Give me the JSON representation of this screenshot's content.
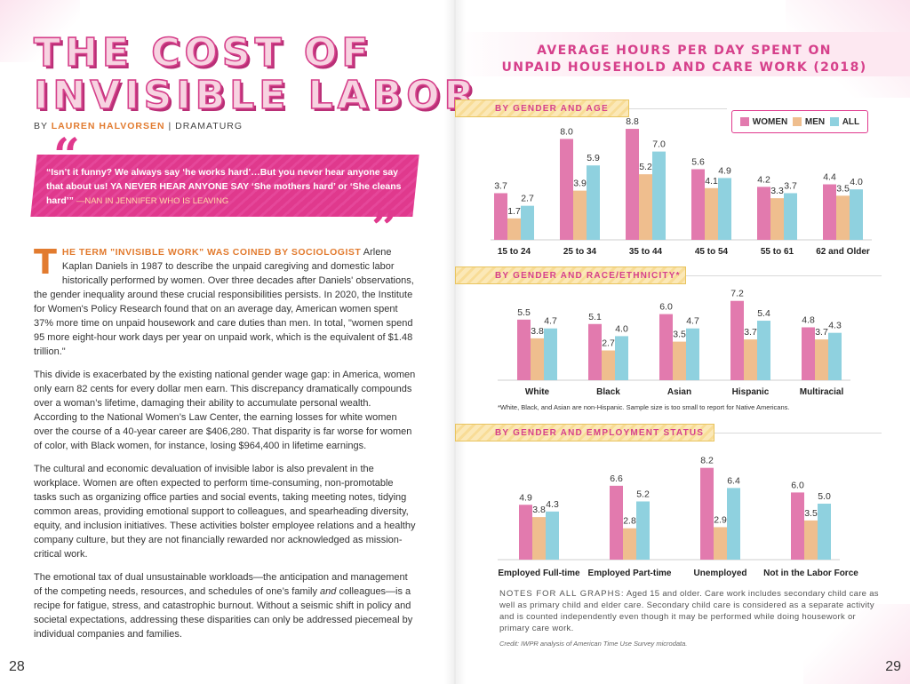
{
  "left": {
    "title_line1": "THE COST OF",
    "title_line2": "INVISIBLE LABOR",
    "byline_by": "BY",
    "byline_author": "LAUREN HALVORSEN",
    "byline_sep": "|",
    "byline_role": "DRAMATURG",
    "quote_mark_open": "“",
    "quote_mark_close": "”",
    "quote_part1": "“Isn’t it funny? We always say ‘he works hard’…But you never hear anyone say that about us! ",
    "quote_part2": "Ya never hear anyone say",
    "quote_part3": " ‘She mothers hard’ or ‘She cleans hard’” ",
    "quote_attr": "—NAN IN JENNIFER WHO IS LEAVING",
    "dropcap": "T",
    "lead": "he term \"invisible work\" was coined by sociologist",
    "para1": " Arlene Kaplan Daniels in 1987 to describe the unpaid caregiving and domestic labor historically performed by women. Over three decades after Daniels' observations, the gender inequality around these crucial responsibilities persists. In 2020, the Institute for Women's Policy Research found that on an average day, American women spent 37% more time on unpaid housework and care duties than men. In total, \"women spend 95 more eight-hour work days per year on unpaid work, which is the equivalent of $1.48 trillion.\"",
    "para2": "This divide is exacerbated by the existing national gender wage gap: in America, women only earn 82 cents for every dollar men earn. This discrepancy dramatically compounds over a woman’s lifetime, damaging their ability to accumulate personal wealth. According to the National Women’s Law Center, the earning losses for white women over the course of a 40-year career are $406,280. That disparity is far worse for women of color, with Black women, for instance, losing $964,400 in lifetime earnings.",
    "para3": "The cultural and economic devaluation of invisible labor is also prevalent in the workplace. Women are often expected to perform time-consuming, non-promotable tasks such as organizing office parties and social events, taking meeting notes, tidying common areas, providing emotional support to colleagues, and spearheading diversity, equity, and inclusion initiatives. These activities bolster employee relations and a healthy company culture, but they are not financially rewarded nor acknowledged as mission-critical work.",
    "para4a": "The emotional tax of dual unsustainable workloads—the anticipation and management of the competing needs, resources, and schedules of one’s family ",
    "para4_em": "and",
    "para4b": " colleagues—is a recipe for fatigue, stress, and catastrophic burnout. Without a seismic shift in policy and societal expectations, addressing these disparities can only be addressed piecemeal by individual companies and families.",
    "page_number": "28"
  },
  "right": {
    "title_line1": "AVERAGE HOURS PER DAY SPENT ON",
    "title_line2": "UNPAID HOUSEHOLD AND CARE WORK (2018)",
    "legend": [
      "WOMEN",
      "MEN",
      "ALL"
    ],
    "footnote": "*White, Black, and Asian are non-Hispanic. Sample size is too small to report for Native Americans.",
    "notes_label": "NOTES FOR ALL GRAPHS:",
    "notes_text": " Aged 15 and older. Care work includes secondary child care as well as primary child and elder care. Secondary child care is considered as a separate activity and is counted independently even though it may be performed while doing housework or primary care work.",
    "credit": "Credit: IWPR analysis of American Time Use Survey microdata.",
    "page_number": "29"
  },
  "colors": {
    "women": "#e27aae",
    "men": "#efbe8e",
    "all": "#8fd1df",
    "accent": "#e0398d",
    "orange": "#e27b2f"
  },
  "chart_data": [
    {
      "type": "bar",
      "title": "BY GENDER AND AGE",
      "categories": [
        "15 to 24",
        "25 to 34",
        "35 to 44",
        "45 to 54",
        "55 to 61",
        "62 and Older"
      ],
      "series": [
        {
          "name": "WOMEN",
          "values": [
            3.7,
            8.0,
            8.8,
            5.6,
            4.2,
            4.4
          ]
        },
        {
          "name": "MEN",
          "values": [
            1.7,
            3.9,
            5.2,
            4.1,
            3.3,
            3.5
          ]
        },
        {
          "name": "ALL",
          "values": [
            2.7,
            5.9,
            7.0,
            4.9,
            3.7,
            4.0
          ]
        }
      ]
    },
    {
      "type": "bar",
      "title": "BY GENDER AND RACE/ETHNICITY*",
      "categories": [
        "White",
        "Black",
        "Asian",
        "Hispanic",
        "Multiracial"
      ],
      "series": [
        {
          "name": "WOMEN",
          "values": [
            5.5,
            5.1,
            6.0,
            7.2,
            4.8
          ]
        },
        {
          "name": "MEN",
          "values": [
            3.8,
            2.7,
            3.5,
            3.7,
            3.7
          ]
        },
        {
          "name": "ALL",
          "values": [
            4.7,
            4.0,
            4.7,
            5.4,
            4.3
          ]
        }
      ]
    },
    {
      "type": "bar",
      "title": "BY GENDER AND EMPLOYMENT STATUS",
      "categories": [
        "Employed Full-time",
        "Employed Part-time",
        "Unemployed",
        "Not in the Labor Force"
      ],
      "series": [
        {
          "name": "WOMEN",
          "values": [
            4.9,
            6.6,
            8.2,
            6.0
          ]
        },
        {
          "name": "MEN",
          "values": [
            3.8,
            2.8,
            2.9,
            3.5
          ]
        },
        {
          "name": "ALL",
          "values": [
            4.3,
            5.2,
            6.4,
            5.0
          ]
        }
      ]
    }
  ]
}
